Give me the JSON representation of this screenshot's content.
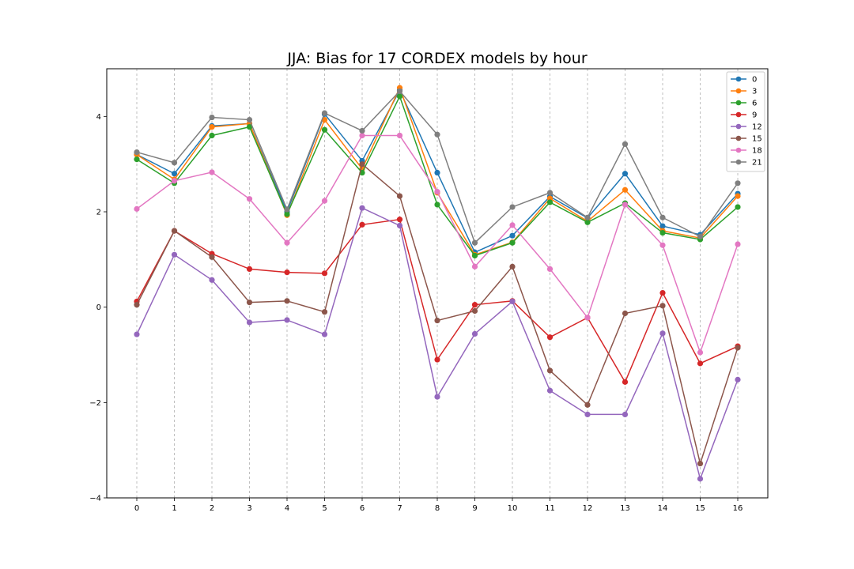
{
  "chart_data": {
    "type": "line",
    "title": "JJA: Bias for 17 CORDEX models by hour",
    "xlabel": "",
    "ylabel": "",
    "x": [
      0,
      1,
      2,
      3,
      4,
      5,
      6,
      7,
      8,
      9,
      10,
      11,
      12,
      13,
      14,
      15,
      16
    ],
    "xticks": [
      "0",
      "1",
      "2",
      "3",
      "4",
      "5",
      "6",
      "7",
      "8",
      "9",
      "10",
      "11",
      "12",
      "13",
      "14",
      "15",
      "16"
    ],
    "yticks": [
      -4,
      -2,
      0,
      2,
      4
    ],
    "ytick_labels": [
      "−4",
      "−2",
      "0",
      "2",
      "4"
    ],
    "xlim": [
      -0.8,
      16.8
    ],
    "ylim": [
      -4.0,
      5.0
    ],
    "grid": "vertical dashed",
    "legend_position": "top-right",
    "series": [
      {
        "name": "0",
        "color": "#1f77b4",
        "values": [
          3.2,
          2.8,
          3.8,
          3.85,
          2.0,
          4.05,
          3.07,
          4.55,
          2.82,
          1.15,
          1.5,
          2.32,
          1.87,
          2.8,
          1.7,
          1.52,
          2.38
        ]
      },
      {
        "name": "3",
        "color": "#ff7f0e",
        "values": [
          3.2,
          2.68,
          3.78,
          3.85,
          1.93,
          3.93,
          2.9,
          4.6,
          2.4,
          1.1,
          1.36,
          2.28,
          1.8,
          2.46,
          1.6,
          1.45,
          2.33
        ]
      },
      {
        "name": "6",
        "color": "#2ca02c",
        "values": [
          3.1,
          2.6,
          3.6,
          3.78,
          1.95,
          3.72,
          2.82,
          4.42,
          2.15,
          1.08,
          1.35,
          2.2,
          1.78,
          2.18,
          1.56,
          1.42,
          2.1
        ]
      },
      {
        "name": "9",
        "color": "#d62728",
        "values": [
          0.12,
          1.6,
          1.12,
          0.8,
          0.73,
          0.71,
          1.73,
          1.84,
          -1.1,
          0.05,
          0.13,
          -0.63,
          -0.22,
          -1.57,
          0.3,
          -1.18,
          -0.82
        ]
      },
      {
        "name": "12",
        "color": "#9467bd",
        "values": [
          -0.57,
          1.1,
          0.57,
          -0.32,
          -0.27,
          -0.57,
          2.08,
          1.71,
          -1.88,
          -0.56,
          0.12,
          -1.75,
          -2.25,
          -2.25,
          -0.55,
          -3.6,
          -1.52
        ]
      },
      {
        "name": "15",
        "color": "#8c564b",
        "values": [
          0.05,
          1.6,
          1.05,
          0.1,
          0.13,
          -0.1,
          3.0,
          2.33,
          -0.28,
          -0.08,
          0.85,
          -1.33,
          -2.05,
          -0.13,
          0.03,
          -3.28,
          -0.85
        ]
      },
      {
        "name": "18",
        "color": "#e377c2",
        "values": [
          2.06,
          2.65,
          2.83,
          2.27,
          1.35,
          2.23,
          3.6,
          3.6,
          2.42,
          0.85,
          1.72,
          0.8,
          -0.22,
          2.15,
          1.3,
          -0.95,
          1.32
        ]
      },
      {
        "name": "21",
        "color": "#7f7f7f",
        "values": [
          3.25,
          3.03,
          3.98,
          3.93,
          2.05,
          4.07,
          3.7,
          4.53,
          3.62,
          1.35,
          2.1,
          2.4,
          1.88,
          3.42,
          1.88,
          1.48,
          2.6
        ]
      }
    ]
  }
}
